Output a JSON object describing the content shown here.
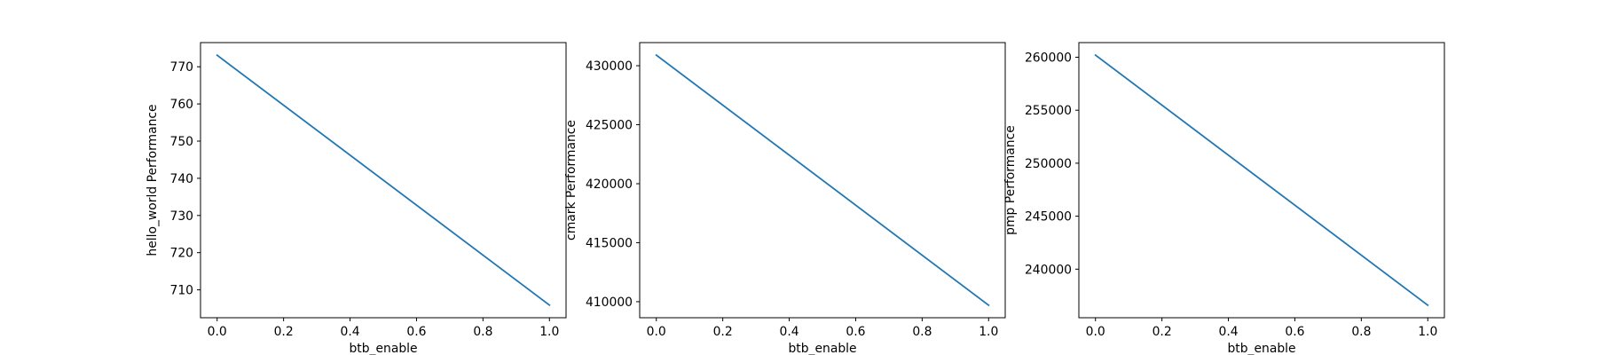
{
  "chart_data": [
    {
      "type": "line",
      "xlabel": "btb_enable",
      "ylabel": "hello_world Performance",
      "x": [
        0.0,
        1.0
      ],
      "series": [
        {
          "values": [
            773.1,
            705.9
          ],
          "color": "#1f77b4"
        }
      ],
      "xlim": [
        -0.05,
        1.05
      ],
      "ylim": [
        702.5,
        776.5
      ],
      "xticks": [
        0.0,
        0.2,
        0.4,
        0.6,
        0.8,
        1.0
      ],
      "xtick_labels": [
        "0.0",
        "0.2",
        "0.4",
        "0.6",
        "0.8",
        "1.0"
      ],
      "yticks": [
        710,
        720,
        730,
        740,
        750,
        760,
        770
      ],
      "ytick_labels": [
        "710",
        "720",
        "730",
        "740",
        "750",
        "760",
        "770"
      ],
      "grid": false,
      "legend": false
    },
    {
      "type": "line",
      "xlabel": "btb_enable",
      "ylabel": "cmark Performance",
      "x": [
        0.0,
        1.0
      ],
      "series": [
        {
          "values": [
            430900,
            409700
          ],
          "color": "#1f77b4"
        }
      ],
      "xlim": [
        -0.05,
        1.05
      ],
      "ylim": [
        408640,
        431960
      ],
      "xticks": [
        0.0,
        0.2,
        0.4,
        0.6,
        0.8,
        1.0
      ],
      "xtick_labels": [
        "0.0",
        "0.2",
        "0.4",
        "0.6",
        "0.8",
        "1.0"
      ],
      "yticks": [
        410000,
        415000,
        420000,
        425000,
        430000
      ],
      "ytick_labels": [
        "410000",
        "415000",
        "420000",
        "425000",
        "430000"
      ],
      "grid": false,
      "legend": false
    },
    {
      "type": "line",
      "xlabel": "btb_enable",
      "ylabel": "pmp Performance",
      "x": [
        0.0,
        1.0
      ],
      "series": [
        {
          "values": [
            260200,
            236600
          ],
          "color": "#1f77b4"
        }
      ],
      "xlim": [
        -0.05,
        1.05
      ],
      "ylim": [
        235420,
        261380
      ],
      "xticks": [
        0.0,
        0.2,
        0.4,
        0.6,
        0.8,
        1.0
      ],
      "xtick_labels": [
        "0.0",
        "0.2",
        "0.4",
        "0.6",
        "0.8",
        "1.0"
      ],
      "yticks": [
        240000,
        245000,
        250000,
        255000,
        260000
      ],
      "ytick_labels": [
        "240000",
        "245000",
        "250000",
        "255000",
        "260000"
      ],
      "grid": false,
      "legend": false
    }
  ]
}
